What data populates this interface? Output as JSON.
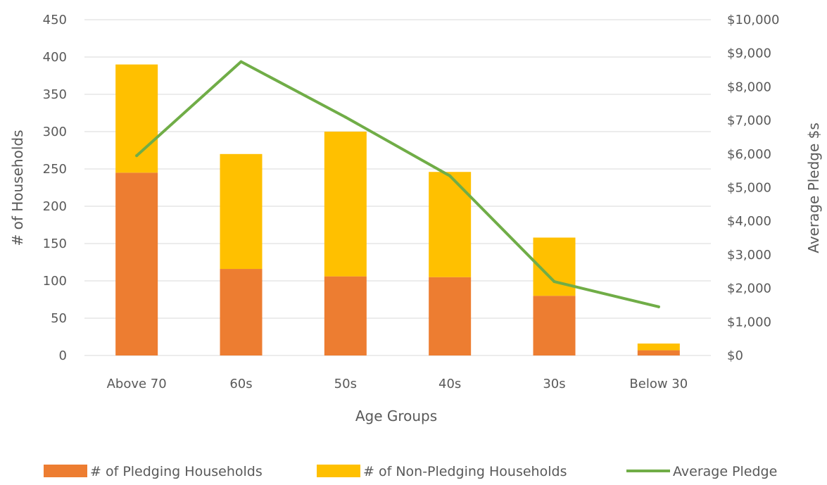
{
  "chart_data": {
    "type": "bar",
    "stacked": true,
    "categories": [
      "Above 70",
      "60s",
      "50s",
      "40s",
      "30s",
      "Below 30"
    ],
    "series": [
      {
        "name": "# of Pledging Households",
        "type": "bar",
        "axis": "left",
        "color": "#ed7d31",
        "values": [
          245,
          116,
          106,
          105,
          80,
          7
        ]
      },
      {
        "name": "# of Non-Pledging Households",
        "type": "bar",
        "axis": "left",
        "color": "#ffc000",
        "values": [
          145,
          154,
          194,
          141,
          78,
          9
        ]
      },
      {
        "name": "Average Pledge",
        "type": "line",
        "axis": "right",
        "color": "#70ad47",
        "values": [
          5950,
          8750,
          7100,
          5350,
          2200,
          1450
        ]
      }
    ],
    "xlabel": "Age Groups",
    "ylabel": "# of Households",
    "y2label": "Average Pledge $s",
    "ylim": [
      0,
      450
    ],
    "yticks": [
      0,
      50,
      100,
      150,
      200,
      250,
      300,
      350,
      400,
      450
    ],
    "ytick_labels": [
      "0",
      "50",
      "100",
      "150",
      "200",
      "250",
      "300",
      "350",
      "400",
      "450"
    ],
    "y2lim": [
      0,
      10000
    ],
    "y2ticks": [
      0,
      1000,
      2000,
      3000,
      4000,
      5000,
      6000,
      7000,
      8000,
      9000,
      10000
    ],
    "y2tick_labels": [
      "$0",
      "$1,000",
      "$2,000",
      "$3,000",
      "$4,000",
      "$5,000",
      "$6,000",
      "$7,000",
      "$8,000",
      "$9,000",
      "$10,000"
    ],
    "grid": true,
    "legend_position": "bottom"
  }
}
